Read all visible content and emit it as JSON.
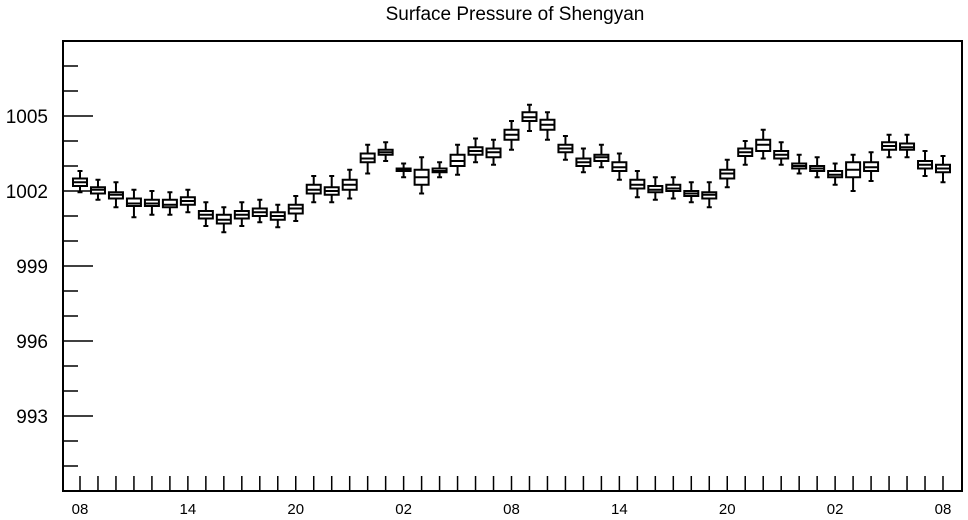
{
  "chart_data": {
    "type": "box",
    "title": "Surface Pressure of Shengyan",
    "xlabel": "",
    "ylabel": "",
    "ylim": [
      990.0,
      1008.0
    ],
    "y_ticks": [
      "1005",
      "1002",
      "999",
      "996",
      "993"
    ],
    "y_tick_values": [
      1005,
      1002,
      999,
      996,
      993
    ],
    "x_tick_labels": [
      "08",
      "14",
      "20",
      "02",
      "08",
      "14",
      "20",
      "02",
      "08"
    ],
    "x_tick_slots": [
      0,
      6,
      12,
      18,
      24,
      30,
      36,
      42,
      48
    ],
    "slot_count": 49,
    "grid": false,
    "boxes": [
      {
        "slot": 0,
        "min": 1001.95,
        "q1": 1002.2,
        "median": 1002.35,
        "q3": 1002.5,
        "max": 1002.8
      },
      {
        "slot": 1,
        "min": 1001.65,
        "q1": 1001.9,
        "median": 1002.05,
        "q3": 1002.15,
        "max": 1002.45
      },
      {
        "slot": 2,
        "min": 1001.35,
        "q1": 1001.7,
        "median": 1001.85,
        "q3": 1001.95,
        "max": 1002.35
      },
      {
        "slot": 3,
        "min": 1000.95,
        "q1": 1001.4,
        "median": 1001.5,
        "q3": 1001.7,
        "max": 1002.05
      },
      {
        "slot": 4,
        "min": 1001.05,
        "q1": 1001.4,
        "median": 1001.5,
        "q3": 1001.65,
        "max": 1002.0
      },
      {
        "slot": 5,
        "min": 1001.05,
        "q1": 1001.35,
        "median": 1001.45,
        "q3": 1001.65,
        "max": 1001.95
      },
      {
        "slot": 6,
        "min": 1001.15,
        "q1": 1001.45,
        "median": 1001.6,
        "q3": 1001.75,
        "max": 1002.05
      },
      {
        "slot": 7,
        "min": 1000.6,
        "q1": 1000.9,
        "median": 1001.05,
        "q3": 1001.2,
        "max": 1001.55
      },
      {
        "slot": 8,
        "min": 1000.35,
        "q1": 1000.7,
        "median": 1000.85,
        "q3": 1001.05,
        "max": 1001.35
      },
      {
        "slot": 9,
        "min": 1000.6,
        "q1": 1000.9,
        "median": 1001.05,
        "q3": 1001.2,
        "max": 1001.55
      },
      {
        "slot": 10,
        "min": 1000.75,
        "q1": 1001.0,
        "median": 1001.15,
        "q3": 1001.3,
        "max": 1001.65
      },
      {
        "slot": 11,
        "min": 1000.55,
        "q1": 1000.85,
        "median": 1001.0,
        "q3": 1001.15,
        "max": 1001.45
      },
      {
        "slot": 12,
        "min": 1000.8,
        "q1": 1001.1,
        "median": 1001.3,
        "q3": 1001.45,
        "max": 1001.8
      },
      {
        "slot": 13,
        "min": 1001.55,
        "q1": 1001.9,
        "median": 1002.05,
        "q3": 1002.25,
        "max": 1002.6
      },
      {
        "slot": 14,
        "min": 1001.55,
        "q1": 1001.85,
        "median": 1002.0,
        "q3": 1002.15,
        "max": 1002.6
      },
      {
        "slot": 15,
        "min": 1001.7,
        "q1": 1002.05,
        "median": 1002.25,
        "q3": 1002.45,
        "max": 1002.85
      },
      {
        "slot": 16,
        "min": 1002.7,
        "q1": 1003.15,
        "median": 1003.3,
        "q3": 1003.5,
        "max": 1003.85
      },
      {
        "slot": 17,
        "min": 1003.2,
        "q1": 1003.45,
        "median": 1003.55,
        "q3": 1003.65,
        "max": 1003.95
      },
      {
        "slot": 18,
        "min": 1002.55,
        "q1": 1002.8,
        "median": 1002.85,
        "q3": 1002.9,
        "max": 1003.1
      },
      {
        "slot": 19,
        "min": 1001.9,
        "q1": 1002.25,
        "median": 1002.55,
        "q3": 1002.85,
        "max": 1003.35
      },
      {
        "slot": 20,
        "min": 1002.55,
        "q1": 1002.75,
        "median": 1002.8,
        "q3": 1002.9,
        "max": 1003.15
      },
      {
        "slot": 21,
        "min": 1002.65,
        "q1": 1003.0,
        "median": 1003.2,
        "q3": 1003.45,
        "max": 1003.85
      },
      {
        "slot": 22,
        "min": 1003.15,
        "q1": 1003.45,
        "median": 1003.6,
        "q3": 1003.75,
        "max": 1004.1
      },
      {
        "slot": 23,
        "min": 1003.05,
        "q1": 1003.35,
        "median": 1003.55,
        "q3": 1003.7,
        "max": 1004.05
      },
      {
        "slot": 24,
        "min": 1003.65,
        "q1": 1004.05,
        "median": 1004.25,
        "q3": 1004.45,
        "max": 1004.8
      },
      {
        "slot": 25,
        "min": 1004.4,
        "q1": 1004.8,
        "median": 1004.95,
        "q3": 1005.15,
        "max": 1005.45
      },
      {
        "slot": 26,
        "min": 1004.05,
        "q1": 1004.45,
        "median": 1004.65,
        "q3": 1004.85,
        "max": 1005.15
      },
      {
        "slot": 27,
        "min": 1003.25,
        "q1": 1003.55,
        "median": 1003.7,
        "q3": 1003.85,
        "max": 1004.2
      },
      {
        "slot": 28,
        "min": 1002.75,
        "q1": 1003.0,
        "median": 1003.15,
        "q3": 1003.3,
        "max": 1003.7
      },
      {
        "slot": 29,
        "min": 1002.95,
        "q1": 1003.2,
        "median": 1003.35,
        "q3": 1003.45,
        "max": 1003.85
      },
      {
        "slot": 30,
        "min": 1002.45,
        "q1": 1002.8,
        "median": 1002.95,
        "q3": 1003.15,
        "max": 1003.5
      },
      {
        "slot": 31,
        "min": 1001.75,
        "q1": 1002.1,
        "median": 1002.25,
        "q3": 1002.45,
        "max": 1002.8
      },
      {
        "slot": 32,
        "min": 1001.65,
        "q1": 1001.95,
        "median": 1002.05,
        "q3": 1002.2,
        "max": 1002.55
      },
      {
        "slot": 33,
        "min": 1001.7,
        "q1": 1002.0,
        "median": 1002.1,
        "q3": 1002.25,
        "max": 1002.55
      },
      {
        "slot": 34,
        "min": 1001.55,
        "q1": 1001.8,
        "median": 1001.9,
        "q3": 1002.0,
        "max": 1002.35
      },
      {
        "slot": 35,
        "min": 1001.35,
        "q1": 1001.7,
        "median": 1001.85,
        "q3": 1001.95,
        "max": 1002.35
      },
      {
        "slot": 36,
        "min": 1002.15,
        "q1": 1002.5,
        "median": 1002.7,
        "q3": 1002.85,
        "max": 1003.25
      },
      {
        "slot": 37,
        "min": 1003.05,
        "q1": 1003.4,
        "median": 1003.55,
        "q3": 1003.7,
        "max": 1004.0
      },
      {
        "slot": 38,
        "min": 1003.3,
        "q1": 1003.6,
        "median": 1003.85,
        "q3": 1004.05,
        "max": 1004.45
      },
      {
        "slot": 39,
        "min": 1003.05,
        "q1": 1003.3,
        "median": 1003.45,
        "q3": 1003.6,
        "max": 1003.95
      },
      {
        "slot": 40,
        "min": 1002.7,
        "q1": 1002.9,
        "median": 1003.0,
        "q3": 1003.1,
        "max": 1003.45
      },
      {
        "slot": 41,
        "min": 1002.55,
        "q1": 1002.8,
        "median": 1002.9,
        "q3": 1003.0,
        "max": 1003.35
      },
      {
        "slot": 42,
        "min": 1002.25,
        "q1": 1002.55,
        "median": 1002.65,
        "q3": 1002.8,
        "max": 1003.1
      },
      {
        "slot": 43,
        "min": 1002.0,
        "q1": 1002.55,
        "median": 1002.85,
        "q3": 1003.15,
        "max": 1003.45
      },
      {
        "slot": 44,
        "min": 1002.4,
        "q1": 1002.8,
        "median": 1002.95,
        "q3": 1003.15,
        "max": 1003.55
      },
      {
        "slot": 45,
        "min": 1003.35,
        "q1": 1003.65,
        "median": 1003.8,
        "q3": 1003.95,
        "max": 1004.25
      },
      {
        "slot": 46,
        "min": 1003.35,
        "q1": 1003.65,
        "median": 1003.75,
        "q3": 1003.9,
        "max": 1004.25
      },
      {
        "slot": 47,
        "min": 1002.6,
        "q1": 1002.9,
        "median": 1003.05,
        "q3": 1003.2,
        "max": 1003.6
      },
      {
        "slot": 48,
        "min": 1002.35,
        "q1": 1002.75,
        "median": 1002.9,
        "q3": 1003.05,
        "max": 1003.4
      }
    ]
  }
}
